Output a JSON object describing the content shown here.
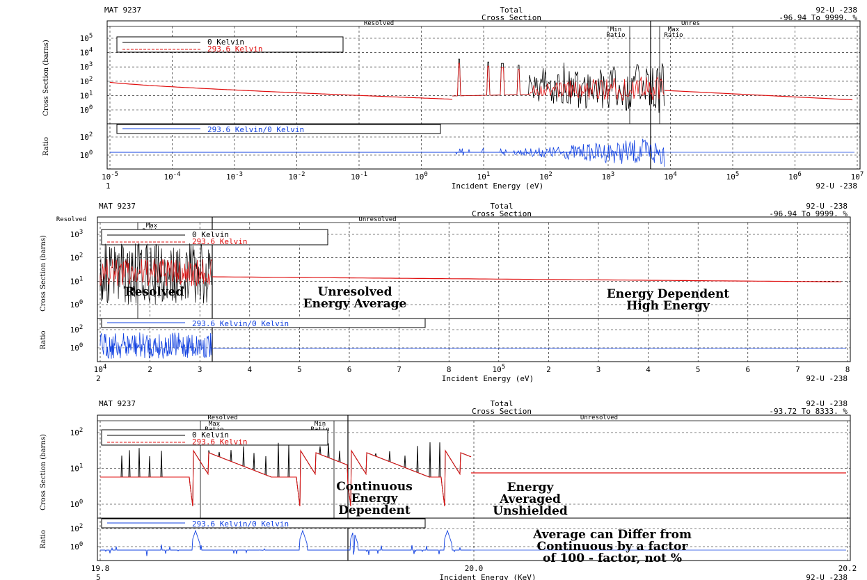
{
  "colors": {
    "kelvin0": "#000000",
    "kelvin293": "#e01010",
    "ratio": "#1040e0",
    "grid": "#000000"
  },
  "chart_data": [
    {
      "type": "line",
      "header": {
        "mat": "MAT 9237",
        "title1": "Total",
        "title2": "Cross Section",
        "material": "92-U -238",
        "range": "-96.94 To 9999. %"
      },
      "x_axis": {
        "scale": "log",
        "label": "Incident Energy (eV)",
        "ticks": [
          "10-5",
          "10-4",
          "10-3",
          "10-2",
          "10-1",
          "100",
          "101",
          "102",
          "103",
          "104",
          "105",
          "106",
          "107"
        ],
        "left_note": "1",
        "right_note": "92-U -238"
      },
      "regions": {
        "resolved": "Resolved",
        "unresolved": "Unres",
        "min_ratio": "Min Ratio",
        "max_ratio": "Max Ratio"
      },
      "upper": {
        "ylabel": "Cross Section (barns)",
        "yticks": [
          "100",
          "101",
          "102",
          "103",
          "104",
          "105"
        ],
        "legend": [
          "0 Kelvin",
          "293.6 Kelvin"
        ]
      },
      "lower": {
        "ylabel": "Ratio",
        "yticks": [
          "100",
          "102"
        ],
        "legend": [
          "293.6 Kelvin/0 Kelvin"
        ]
      },
      "series": [
        {
          "name": "0 Kelvin",
          "description": "smooth 1/v decline, sharp resonances from ~6 eV to ~20 keV"
        },
        {
          "name": "293.6 Kelvin",
          "description": "Doppler-broadened resonances"
        },
        {
          "name": "293.6 Kelvin/0 Kelvin",
          "description": "ratio near 1 with spikes at resonances"
        }
      ]
    },
    {
      "type": "line",
      "header": {
        "mat": "MAT 9237",
        "title1": "Total",
        "title2": "Cross Section",
        "material": "92-U -238",
        "range": "-96.94 To 9999. %"
      },
      "x_axis": {
        "scale": "log",
        "label": "Incident Energy (eV)",
        "ticks": [
          "104",
          "2",
          "3",
          "4",
          "5",
          "6",
          "7",
          "8",
          "105",
          "2",
          "3",
          "4",
          "5",
          "6",
          "7",
          "8"
        ],
        "left_note": "2",
        "right_note": "92-U -238"
      },
      "regions": {
        "resolved": "Resolved",
        "unresolved": "Unresolved",
        "max_ratio": "Max Ratio"
      },
      "upper": {
        "ylabel": "Cross Section (barns)",
        "yticks": [
          "100",
          "101",
          "102",
          "103"
        ],
        "legend": [
          "0 Kelvin",
          "293.6 Kelvin"
        ]
      },
      "lower": {
        "ylabel": "Ratio",
        "yticks": [
          "100",
          "102"
        ],
        "legend": [
          "293.6 Kelvin/0 Kelvin"
        ]
      },
      "annotations": [
        {
          "lines": [
            "Resolved"
          ]
        },
        {
          "lines": [
            "Unresolved",
            "Energy Average"
          ]
        },
        {
          "lines": [
            "Energy Dependent",
            "High Energy"
          ]
        }
      ]
    },
    {
      "type": "line",
      "header": {
        "mat": "MAT 9237",
        "title1": "Total",
        "title2": "Cross Section",
        "material": "92-U -238",
        "range": "-93.72 To 8333. %"
      },
      "x_axis": {
        "scale": "linear",
        "label": "Incident Energy (KeV)",
        "ticks": [
          "19.8",
          "20.0",
          "20.2"
        ],
        "left_note": "5",
        "right_note": "92-U -238"
      },
      "regions": {
        "resolved": "Resolved",
        "unresolved": "Unresolved",
        "min_ratio": "Min Ratio",
        "max_ratio": "Max Ratio"
      },
      "upper": {
        "ylabel": "Cross Section (barns)",
        "yticks": [
          "100",
          "101",
          "102"
        ],
        "legend": [
          "0 Kelvin",
          "293.6 Kelvin"
        ]
      },
      "lower": {
        "ylabel": "Ratio",
        "yticks": [
          "100",
          "102"
        ],
        "legend": [
          "293.6 Kelvin/0 Kelvin"
        ]
      },
      "annotations": [
        {
          "lines": [
            "Continuous",
            "Energy",
            "Dependent"
          ]
        },
        {
          "lines": [
            "Energy",
            "Averaged",
            "Unshielded"
          ]
        },
        {
          "lines": [
            "Average can Differ from",
            "Continuous by a factor",
            "of 100 - factor, not %"
          ]
        }
      ]
    }
  ]
}
